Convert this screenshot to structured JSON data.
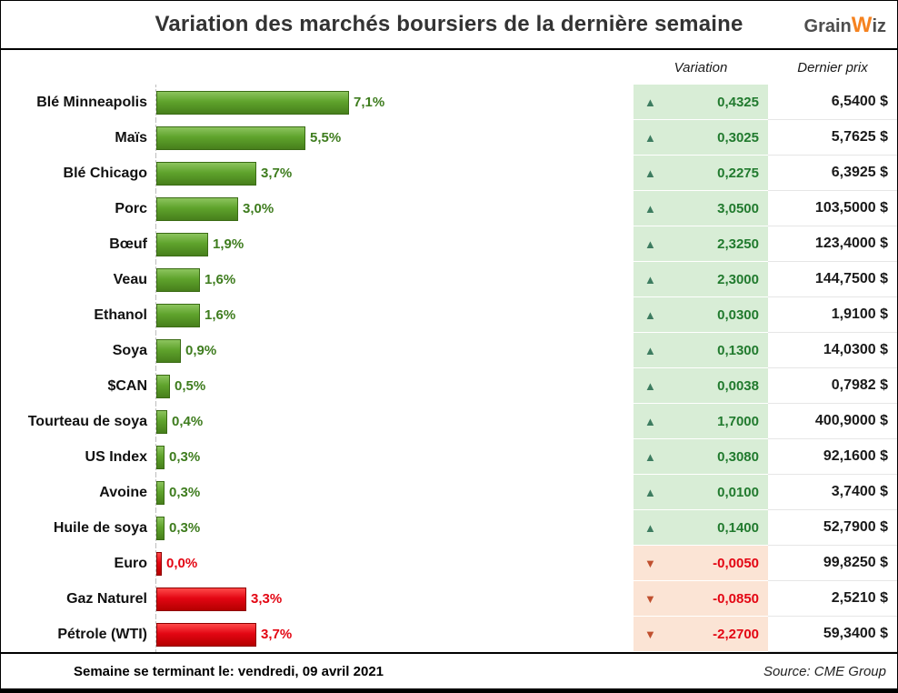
{
  "title": "Variation des marchés boursiers de la dernière semaine",
  "logo": {
    "part1": "Grain",
    "part2": "W",
    "part3": "iz"
  },
  "columns": {
    "variation": "Variation",
    "last_price": "Dernier prix"
  },
  "footer": {
    "week_ending": "Semaine se terminant le:  vendredi, 09 avril 2021",
    "source": "Source: CME Group"
  },
  "colors": {
    "bar_green": "#5fa32c",
    "bar_red": "#e30613",
    "cell_up_bg": "#d8edd6",
    "cell_down_bg": "#fbe4d5",
    "arrow_up": "#3d7c60",
    "arrow_down": "#c0502f",
    "positive_text": "#217a2e",
    "negative_text": "#e30613",
    "logo_accent": "#f5821f"
  },
  "chart_data": {
    "type": "bar",
    "orientation": "horizontal",
    "title": "Variation des marchés boursiers de la dernière semaine",
    "xlabel": "",
    "ylabel": "",
    "x_max_pct": 7.1,
    "categories": [
      "Blé Minneapolis",
      "Maïs",
      "Blé Chicago",
      "Porc",
      "Bœuf",
      "Veau",
      "Ethanol",
      "Soya",
      "$CAN",
      "Tourteau de soya",
      "US Index",
      "Avoine",
      "Huile de soya",
      "Euro",
      "Gaz Naturel",
      "Pétrole (WTI)"
    ],
    "series": [
      {
        "name": "Variation (%)",
        "values": [
          7.1,
          5.5,
          3.7,
          3.0,
          1.9,
          1.6,
          1.6,
          0.9,
          0.5,
          0.4,
          0.3,
          0.3,
          0.3,
          0.0,
          -3.3,
          -3.7
        ]
      },
      {
        "name": "Variation ($)",
        "values": [
          0.4325,
          0.3025,
          0.2275,
          3.05,
          2.325,
          2.3,
          0.03,
          0.13,
          0.0038,
          1.7,
          0.308,
          0.01,
          0.14,
          -0.005,
          -0.085,
          -2.27
        ]
      },
      {
        "name": "Dernier prix ($)",
        "values": [
          6.54,
          5.7625,
          6.3925,
          103.5,
          123.4,
          144.75,
          1.91,
          14.03,
          0.7982,
          400.9,
          92.16,
          3.74,
          52.79,
          99.825,
          2.521,
          59.34
        ]
      }
    ],
    "rows": [
      {
        "label": "Blé Minneapolis",
        "pct": "7,1%",
        "value": 7.1,
        "bar": "green",
        "direction": "up",
        "variation": "0,4325",
        "price": "6,5400 $"
      },
      {
        "label": "Maïs",
        "pct": "5,5%",
        "value": 5.5,
        "bar": "green",
        "direction": "up",
        "variation": "0,3025",
        "price": "5,7625 $"
      },
      {
        "label": "Blé Chicago",
        "pct": "3,7%",
        "value": 3.7,
        "bar": "green",
        "direction": "up",
        "variation": "0,2275",
        "price": "6,3925 $"
      },
      {
        "label": "Porc",
        "pct": "3,0%",
        "value": 3.0,
        "bar": "green",
        "direction": "up",
        "variation": "3,0500",
        "price": "103,5000 $"
      },
      {
        "label": "Bœuf",
        "pct": "1,9%",
        "value": 1.9,
        "bar": "green",
        "direction": "up",
        "variation": "2,3250",
        "price": "123,4000 $"
      },
      {
        "label": "Veau",
        "pct": "1,6%",
        "value": 1.6,
        "bar": "green",
        "direction": "up",
        "variation": "2,3000",
        "price": "144,7500 $"
      },
      {
        "label": "Ethanol",
        "pct": "1,6%",
        "value": 1.6,
        "bar": "green",
        "direction": "up",
        "variation": "0,0300",
        "price": "1,9100 $"
      },
      {
        "label": "Soya",
        "pct": "0,9%",
        "value": 0.9,
        "bar": "green",
        "direction": "up",
        "variation": "0,1300",
        "price": "14,0300 $"
      },
      {
        "label": "$CAN",
        "pct": "0,5%",
        "value": 0.5,
        "bar": "green",
        "direction": "up",
        "variation": "0,0038",
        "price": "0,7982 $"
      },
      {
        "label": "Tourteau de soya",
        "pct": "0,4%",
        "value": 0.4,
        "bar": "green",
        "direction": "up",
        "variation": "1,7000",
        "price": "400,9000 $"
      },
      {
        "label": "US Index",
        "pct": "0,3%",
        "value": 0.3,
        "bar": "green",
        "direction": "up",
        "variation": "0,3080",
        "price": "92,1600 $"
      },
      {
        "label": "Avoine",
        "pct": "0,3%",
        "value": 0.3,
        "bar": "green",
        "direction": "up",
        "variation": "0,0100",
        "price": "3,7400 $"
      },
      {
        "label": "Huile de soya",
        "pct": "0,3%",
        "value": 0.3,
        "bar": "green",
        "direction": "up",
        "variation": "0,1400",
        "price": "52,7900 $"
      },
      {
        "label": "Euro",
        "pct": "0,0%",
        "value": 0.0,
        "bar": "red",
        "direction": "down",
        "variation": "-0,0050",
        "price": "99,8250 $"
      },
      {
        "label": "Gaz Naturel",
        "pct": "3,3%",
        "value": 3.3,
        "bar": "red",
        "direction": "down",
        "variation": "-0,0850",
        "price": "2,5210 $"
      },
      {
        "label": "Pétrole (WTI)",
        "pct": "3,7%",
        "value": 3.7,
        "bar": "red",
        "direction": "down",
        "variation": "-2,2700",
        "price": "59,3400 $"
      }
    ]
  }
}
